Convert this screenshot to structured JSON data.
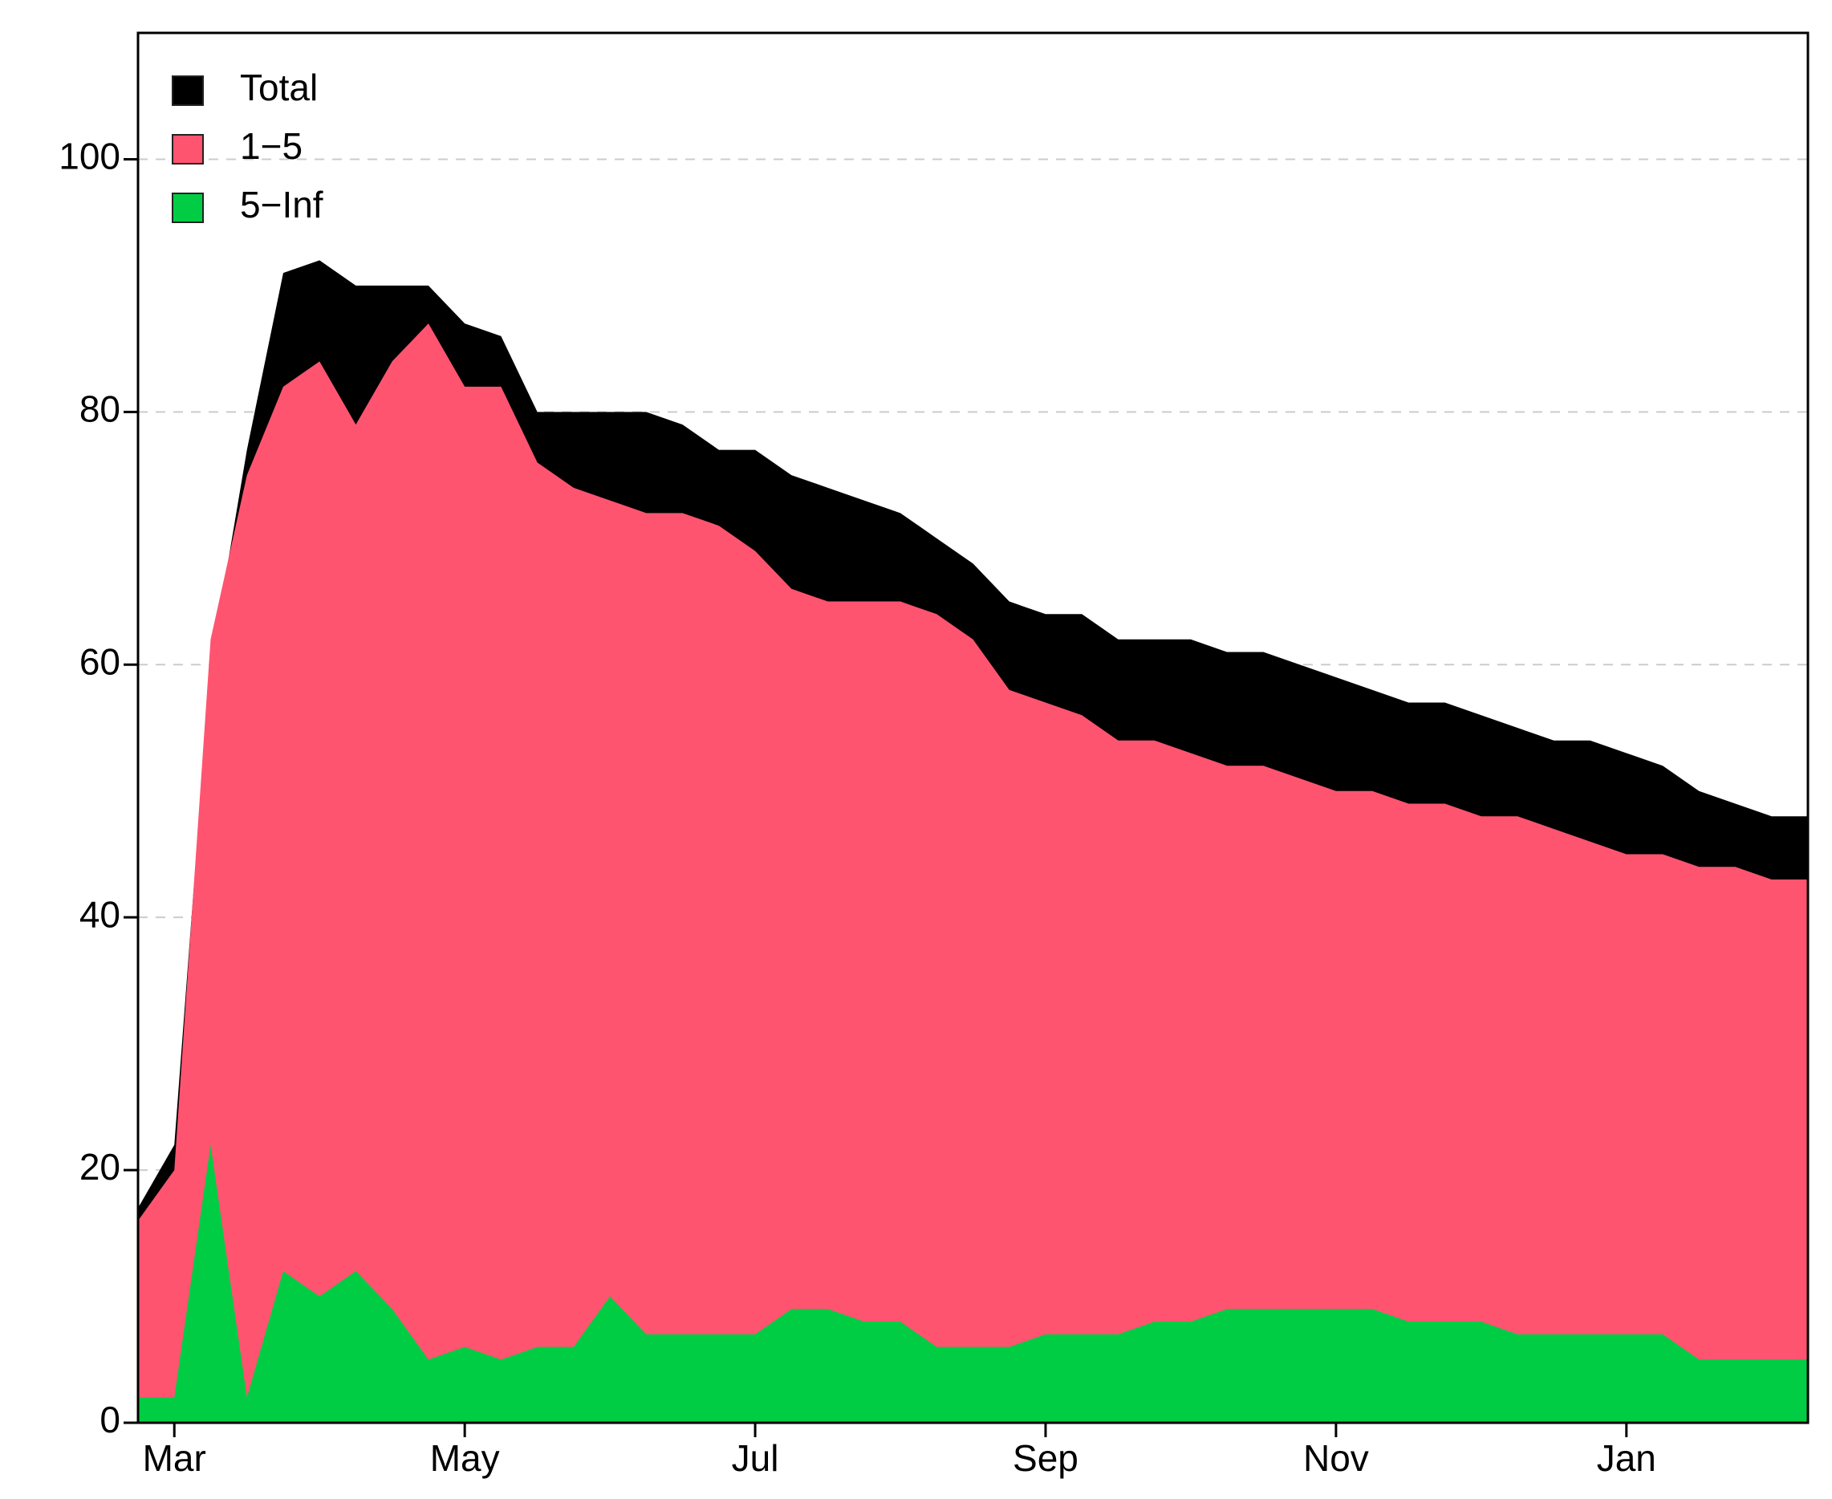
{
  "chart_data": {
    "type": "area",
    "categories": [
      null,
      "Mar",
      null,
      null,
      null,
      null,
      null,
      null,
      null,
      "May",
      null,
      null,
      null,
      null,
      null,
      null,
      null,
      "Jul",
      null,
      null,
      null,
      null,
      null,
      null,
      null,
      "Sep",
      null,
      null,
      null,
      null,
      null,
      null,
      null,
      "Nov",
      null,
      null,
      null,
      null,
      null,
      null,
      null,
      "Jan",
      null,
      null,
      null,
      null,
      null
    ],
    "series": [
      {
        "name": "Total",
        "color": "#000000",
        "values": [
          17,
          22,
          60,
          77,
          91,
          92,
          90,
          90,
          90,
          87,
          86,
          80,
          80,
          80,
          80,
          79,
          77,
          77,
          75,
          74,
          73,
          72,
          70,
          68,
          65,
          64,
          64,
          62,
          62,
          62,
          61,
          61,
          60,
          59,
          58,
          57,
          57,
          56,
          55,
          54,
          54,
          53,
          52,
          50,
          49,
          48,
          48
        ]
      },
      {
        "name": "1−5",
        "color": "#ff5470",
        "values": [
          16,
          20,
          62,
          75,
          82,
          84,
          79,
          84,
          87,
          82,
          82,
          76,
          74,
          73,
          72,
          72,
          71,
          69,
          66,
          65,
          65,
          65,
          64,
          62,
          58,
          57,
          56,
          54,
          54,
          53,
          52,
          52,
          51,
          50,
          50,
          49,
          49,
          48,
          48,
          47,
          46,
          45,
          45,
          44,
          44,
          43,
          43
        ]
      },
      {
        "name": "5−Inf",
        "color": "#00cc44",
        "values": [
          2,
          2,
          22,
          2,
          12,
          10,
          12,
          9,
          5,
          6,
          5,
          6,
          6,
          10,
          7,
          7,
          7,
          7,
          9,
          9,
          8,
          8,
          6,
          6,
          6,
          7,
          7,
          7,
          8,
          8,
          9,
          9,
          9,
          9,
          9,
          8,
          8,
          8,
          7,
          7,
          7,
          7,
          7,
          5,
          5,
          5,
          5
        ]
      }
    ],
    "ylim": [
      0,
      110
    ],
    "yticks": [
      0,
      20,
      40,
      60,
      80,
      100
    ],
    "grid": true,
    "legend": "upper left"
  }
}
